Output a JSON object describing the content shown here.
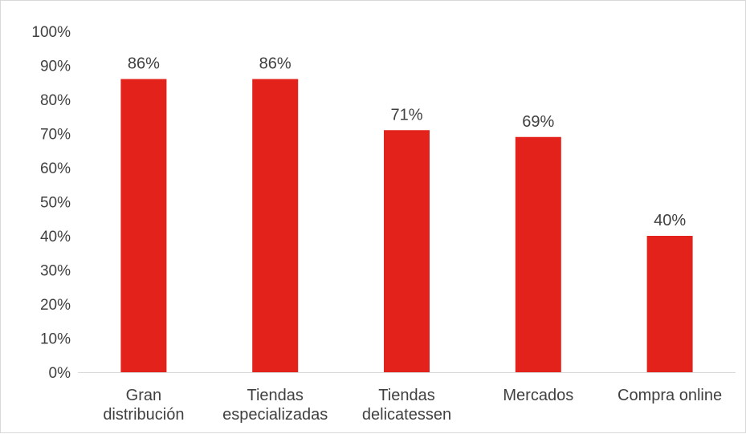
{
  "chart_data": {
    "type": "bar",
    "title": "",
    "xlabel": "",
    "ylabel": "",
    "ylim": [
      0,
      100
    ],
    "yticks": [
      "0%",
      "10%",
      "20%",
      "30%",
      "40%",
      "50%",
      "60%",
      "70%",
      "80%",
      "90%",
      "100%"
    ],
    "categories": [
      [
        "Gran",
        "distribución"
      ],
      [
        "Tiendas",
        "especializadas"
      ],
      [
        "Tiendas",
        "delicatessen"
      ],
      [
        "Mercados"
      ],
      [
        "Compra online"
      ]
    ],
    "values": [
      86,
      86,
      71,
      69,
      40
    ],
    "data_labels": [
      "86%",
      "86%",
      "71%",
      "69%",
      "40%"
    ],
    "grid": false,
    "legend": "none",
    "colors": {
      "bar": "#e3231b",
      "axis": "#d9d9d9",
      "text": "#404040"
    }
  }
}
